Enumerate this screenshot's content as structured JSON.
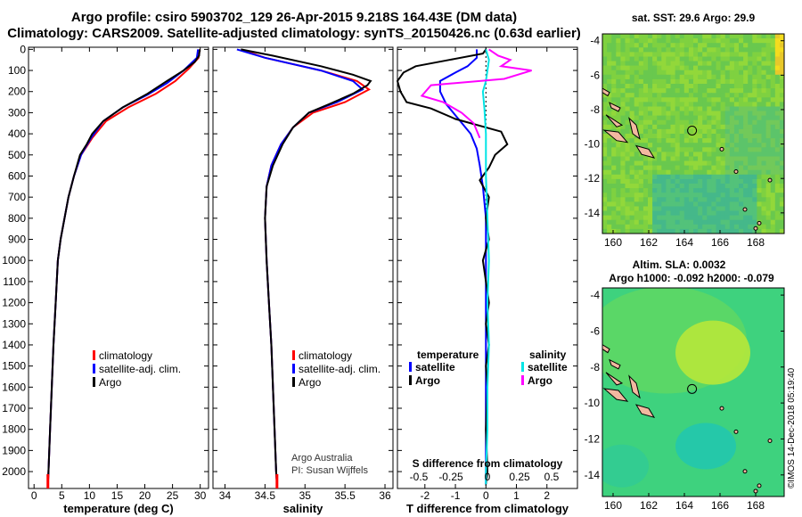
{
  "header": {
    "line1": "Argo profile: csiro 5903702_129 26-Apr-2015 9.218S 164.43E (DM data)",
    "line2": "Climatology: CARS2009. Satellite-adjusted climatology: synTS_20150426.nc (0.63d earlier)"
  },
  "stamp": "©IMOS 14-Dec-2018 05:19:40",
  "colors": {
    "climatology": "#ff0000",
    "satellite": "#0000ff",
    "argo": "#000000",
    "salinity_sat": "#00e5e5",
    "salinity_argo": "#ff00ff"
  },
  "chart_data": [
    {
      "type": "line",
      "xlabel": "temperature (deg C)",
      "xticks": [
        0,
        5,
        10,
        15,
        20,
        25,
        30
      ],
      "xlim": [
        -1,
        31.5
      ],
      "ylim": [
        2080,
        -10
      ],
      "yticks": [
        0,
        100,
        200,
        300,
        400,
        500,
        600,
        700,
        800,
        900,
        1000,
        1100,
        1200,
        1300,
        1400,
        1500,
        1600,
        1700,
        1800,
        1900,
        2000
      ],
      "legend": {
        "position": "center",
        "entries": [
          "climatology",
          "satellite-adj. clim.",
          "Argo"
        ]
      },
      "series": [
        {
          "name": "climatology",
          "color": "#ff0000",
          "points": [
            [
              29.9,
              0
            ],
            [
              29.7,
              40
            ],
            [
              28,
              90
            ],
            [
              25.5,
              150
            ],
            [
              22,
              210
            ],
            [
              17,
              275
            ],
            [
              13,
              340
            ],
            [
              10.5,
              420
            ],
            [
              8.5,
              500
            ],
            [
              7.2,
              600
            ],
            [
              6.2,
              700
            ],
            [
              5.5,
              800
            ],
            [
              4.8,
              900
            ],
            [
              4.3,
              1000
            ],
            [
              3.9,
              1200
            ],
            [
              3.5,
              1400
            ],
            [
              3.2,
              1600
            ],
            [
              2.9,
              1800
            ],
            [
              2.6,
              2000
            ],
            [
              2.5,
              2060
            ]
          ]
        },
        {
          "name": "satellite-adj. clim.",
          "color": "#0000ff",
          "points": [
            [
              29.6,
              0
            ],
            [
              29.4,
              40
            ],
            [
              27,
              100
            ],
            [
              24,
              160
            ],
            [
              20.5,
              215
            ],
            [
              16,
              275
            ],
            [
              12.5,
              340
            ],
            [
              10.3,
              420
            ],
            [
              8.5,
              500
            ],
            [
              7.2,
              600
            ],
            [
              6.2,
              700
            ],
            [
              5.5,
              800
            ],
            [
              4.8,
              900
            ],
            [
              4.3,
              1000
            ],
            [
              3.9,
              1200
            ],
            [
              3.5,
              1400
            ],
            [
              3.2,
              1600
            ],
            [
              2.9,
              1800
            ],
            [
              2.6,
              2000
            ],
            [
              2.5,
              2060
            ]
          ]
        },
        {
          "name": "Argo",
          "color": "#000000",
          "points": [
            [
              29.9,
              0
            ],
            [
              29.8,
              30
            ],
            [
              29,
              60
            ],
            [
              27,
              100
            ],
            [
              24,
              150
            ],
            [
              20.5,
              210
            ],
            [
              16,
              275
            ],
            [
              12.5,
              340
            ],
            [
              10.5,
              400
            ],
            [
              9.5,
              450
            ],
            [
              8.3,
              500
            ],
            [
              7.2,
              600
            ],
            [
              6.2,
              700
            ],
            [
              5.5,
              800
            ],
            [
              4.8,
              900
            ],
            [
              4.3,
              1000
            ],
            [
              3.9,
              1200
            ],
            [
              3.5,
              1400
            ],
            [
              3.2,
              1600
            ],
            [
              2.9,
              1800
            ],
            [
              2.6,
              2000
            ],
            [
              2.5,
              2060
            ]
          ]
        }
      ]
    },
    {
      "type": "line",
      "xlabel": "salinity",
      "xticks": [
        34,
        34.5,
        35,
        35.5,
        36
      ],
      "xlim": [
        33.85,
        36.1
      ],
      "ylim": [
        2080,
        -10
      ],
      "legend": {
        "position": "center",
        "entries": [
          "climatology",
          "satellite-adj. clim.",
          "Argo"
        ]
      },
      "annotation": [
        "Argo Australia",
        "PI: Susan Wijffels"
      ],
      "series": [
        {
          "name": "climatology",
          "color": "#ff0000",
          "points": [
            [
              34.2,
              0
            ],
            [
              34.5,
              40
            ],
            [
              35.2,
              100
            ],
            [
              35.65,
              150
            ],
            [
              35.8,
              190
            ],
            [
              35.5,
              250
            ],
            [
              35.1,
              300
            ],
            [
              34.85,
              370
            ],
            [
              34.7,
              450
            ],
            [
              34.58,
              550
            ],
            [
              34.52,
              650
            ],
            [
              34.5,
              800
            ],
            [
              34.52,
              1000
            ],
            [
              34.55,
              1200
            ],
            [
              34.58,
              1400
            ],
            [
              34.6,
              1600
            ],
            [
              34.62,
              1800
            ],
            [
              34.64,
              2000
            ],
            [
              34.65,
              2060
            ]
          ]
        },
        {
          "name": "satellite-adj. clim.",
          "color": "#0000ff",
          "points": [
            [
              34.15,
              0
            ],
            [
              34.5,
              40
            ],
            [
              35.2,
              100
            ],
            [
              35.6,
              150
            ],
            [
              35.72,
              190
            ],
            [
              35.4,
              250
            ],
            [
              35.05,
              300
            ],
            [
              34.85,
              370
            ],
            [
              34.7,
              450
            ],
            [
              34.58,
              550
            ],
            [
              34.52,
              650
            ],
            [
              34.5,
              800
            ],
            [
              34.52,
              1000
            ],
            [
              34.55,
              1200
            ],
            [
              34.58,
              1400
            ],
            [
              34.6,
              1600
            ],
            [
              34.62,
              1800
            ],
            [
              34.64,
              2000
            ],
            [
              34.65,
              2060
            ]
          ]
        },
        {
          "name": "Argo",
          "color": "#000000",
          "points": [
            [
              34.2,
              0
            ],
            [
              34.6,
              30
            ],
            [
              35.2,
              80
            ],
            [
              35.6,
              120
            ],
            [
              35.82,
              150
            ],
            [
              35.78,
              170
            ],
            [
              35.6,
              210
            ],
            [
              35.3,
              260
            ],
            [
              35.05,
              300
            ],
            [
              34.85,
              370
            ],
            [
              34.72,
              450
            ],
            [
              34.6,
              550
            ],
            [
              34.52,
              650
            ],
            [
              34.5,
              800
            ],
            [
              34.52,
              1000
            ],
            [
              34.55,
              1200
            ],
            [
              34.58,
              1400
            ],
            [
              34.6,
              1600
            ],
            [
              34.62,
              1800
            ],
            [
              34.64,
              2000
            ],
            [
              34.65,
              2060
            ]
          ]
        }
      ]
    },
    {
      "type": "line",
      "xlabel": "T difference from climatology",
      "xticks": [
        -2,
        -1,
        0,
        1,
        2
      ],
      "xlim": [
        -2.9,
        3
      ],
      "top_xlabel": "S difference from climatology",
      "top_xticks": [
        "-0.5",
        "-0.25",
        "0",
        "0.25",
        "0.5"
      ],
      "ylim": [
        2080,
        -10
      ],
      "legend": {
        "position": "center",
        "groups": [
          {
            "title": "temperature",
            "entries": [
              "satellite",
              "Argo"
            ]
          },
          {
            "title": "salinity",
            "entries": [
              "satellite",
              "Argo"
            ]
          }
        ]
      },
      "series": [
        {
          "name": "temperature satellite",
          "color": "#0000ff",
          "points": [
            [
              -0.3,
              0
            ],
            [
              -0.3,
              40
            ],
            [
              -0.6,
              80
            ],
            [
              -1,
              110
            ],
            [
              -1.5,
              150
            ],
            [
              -1.5,
              200
            ],
            [
              -1.3,
              260
            ],
            [
              -0.9,
              330
            ],
            [
              -0.5,
              400
            ],
            [
              -0.3,
              470
            ],
            [
              -0.2,
              550
            ],
            [
              -0.1,
              650
            ],
            [
              0,
              800
            ],
            [
              0,
              2060
            ]
          ]
        },
        {
          "name": "temperature Argo",
          "color": "#000000",
          "points": [
            [
              0,
              0
            ],
            [
              -0.1,
              20
            ],
            [
              -1.2,
              50
            ],
            [
              -2.3,
              80
            ],
            [
              -2.7,
              110
            ],
            [
              -2.9,
              150
            ],
            [
              -2.8,
              200
            ],
            [
              -2.6,
              250
            ],
            [
              -1.8,
              280
            ],
            [
              -1,
              330
            ],
            [
              0.5,
              390
            ],
            [
              0.7,
              450
            ],
            [
              0.3,
              500
            ],
            [
              0.1,
              560
            ],
            [
              -0.2,
              620
            ],
            [
              0.1,
              700
            ],
            [
              0,
              800
            ],
            [
              0.1,
              900
            ],
            [
              -0.1,
              1000
            ],
            [
              0,
              1100
            ],
            [
              0.1,
              1200
            ],
            [
              0,
              1300
            ],
            [
              0.1,
              1400
            ],
            [
              0,
              1500
            ],
            [
              0.05,
              1600
            ],
            [
              0,
              1800
            ],
            [
              0.05,
              2000
            ],
            [
              0,
              2060
            ]
          ]
        },
        {
          "name": "salinity satellite",
          "color": "#00e5e5",
          "points": [
            [
              0,
              0
            ],
            [
              0.1,
              50
            ],
            [
              0.05,
              100
            ],
            [
              0,
              150
            ],
            [
              -0.1,
              200
            ],
            [
              -0.05,
              280
            ],
            [
              0,
              400
            ],
            [
              0,
              600
            ],
            [
              0.05,
              800
            ],
            [
              0.1,
              1000
            ],
            [
              0.05,
              1200
            ],
            [
              0.1,
              1400
            ],
            [
              0.05,
              1600
            ],
            [
              0.05,
              1800
            ],
            [
              0,
              2000
            ],
            [
              0,
              2060
            ]
          ]
        },
        {
          "name": "salinity Argo",
          "color": "#ff00ff",
          "points": [
            [
              0.1,
              0
            ],
            [
              0.4,
              30
            ],
            [
              0.8,
              50
            ],
            [
              0.5,
              80
            ],
            [
              1.5,
              100
            ],
            [
              0.6,
              140
            ],
            [
              -1.8,
              170
            ],
            [
              -2.1,
              220
            ],
            [
              -1.4,
              250
            ],
            [
              -0.8,
              300
            ],
            [
              -0.4,
              350
            ],
            [
              -0.2,
              420
            ]
          ]
        }
      ]
    },
    {
      "type": "heatmap",
      "title": "sat. SST: 29.6 Argo: 29.9",
      "xticks": [
        160,
        162,
        164,
        166,
        168
      ],
      "yticks": [
        -4,
        -6,
        -8,
        -10,
        -12,
        -14
      ],
      "xlim": [
        159.4,
        169.6
      ],
      "ylim": [
        -15.2,
        -3.6
      ],
      "marker": {
        "lon": 164.43,
        "lat": -9.218
      }
    },
    {
      "type": "heatmap",
      "title": "Altim. SLA: 0.0032",
      "subtitle": "Argo h1000: -0.092 h2000: -0.079",
      "xticks": [
        160,
        162,
        164,
        166,
        168
      ],
      "yticks": [
        -4,
        -6,
        -8,
        -10,
        -12,
        -14
      ],
      "xlim": [
        159.4,
        169.6
      ],
      "ylim": [
        -15.2,
        -3.6
      ],
      "marker": {
        "lon": 164.43,
        "lat": -9.218
      }
    }
  ]
}
